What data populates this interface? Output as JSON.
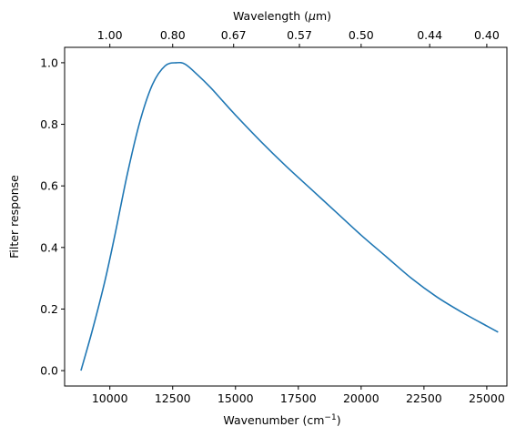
{
  "chart_data": {
    "type": "line",
    "xlabel": "Wavenumber (cm",
    "xlabel_sup": "−1",
    "xlabel_end": ")",
    "ylabel": "Filter response",
    "top_xlabel": "Wavelength (",
    "top_xlabel_mu": "μ",
    "top_xlabel_end": "m)",
    "xlim": [
      8200,
      25800
    ],
    "ylim": [
      -0.05,
      1.05
    ],
    "x_ticks": [
      10000,
      12500,
      15000,
      17500,
      20000,
      22500,
      25000
    ],
    "x_tick_labels": [
      "10000",
      "12500",
      "15000",
      "17500",
      "20000",
      "22500",
      "25000"
    ],
    "y_ticks": [
      0.0,
      0.2,
      0.4,
      0.6,
      0.8,
      1.0
    ],
    "y_tick_labels": [
      "0.0",
      "0.2",
      "0.4",
      "0.6",
      "0.8",
      "1.0"
    ],
    "top_ticks_wavelength_um": [
      1.0,
      0.8,
      0.67,
      0.57,
      0.5,
      0.44,
      0.4
    ],
    "top_tick_labels": [
      "1.00",
      "0.80",
      "0.67",
      "0.57",
      "0.50",
      "0.44",
      "0.40"
    ],
    "grid": false,
    "series": [
      {
        "color": "#1f77b4",
        "x": [
          8850,
          9300,
          9800,
          10200,
          10700,
          11200,
          11700,
          12200,
          12650,
          13000,
          13500,
          14000,
          14500,
          15000,
          16000,
          17000,
          18000,
          19000,
          20000,
          21000,
          22000,
          23000,
          24000,
          25000,
          25450
        ],
        "y": [
          0.0,
          0.13,
          0.29,
          0.44,
          0.64,
          0.81,
          0.93,
          0.99,
          1.0,
          0.995,
          0.96,
          0.92,
          0.875,
          0.83,
          0.745,
          0.665,
          0.59,
          0.515,
          0.44,
          0.37,
          0.3,
          0.24,
          0.19,
          0.145,
          0.125
        ]
      }
    ]
  }
}
